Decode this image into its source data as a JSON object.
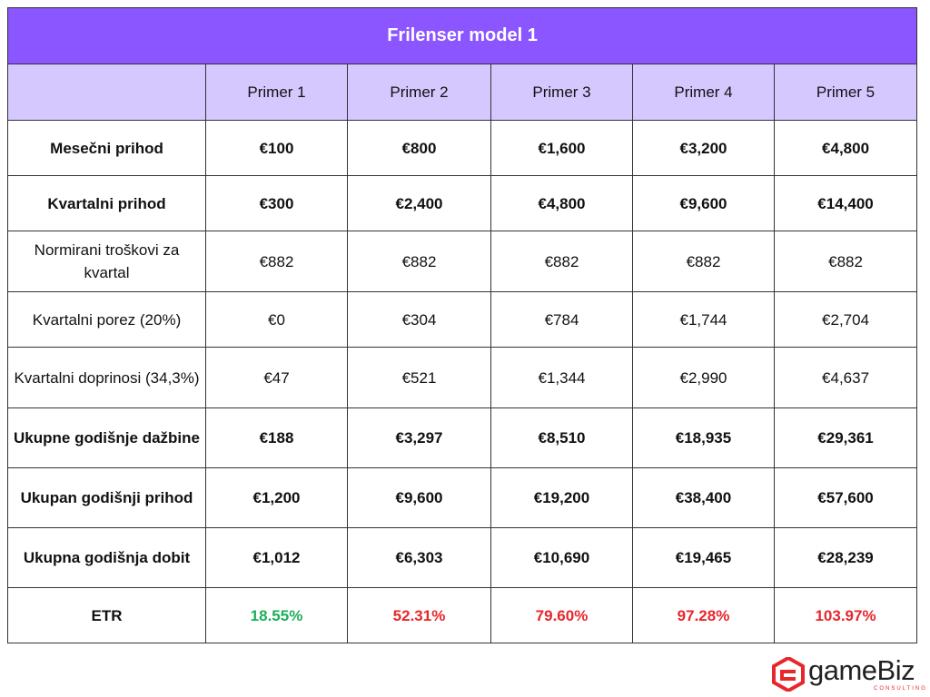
{
  "title": "Frilenser model 1",
  "columns": [
    "",
    "Primer 1",
    "Primer 2",
    "Primer 3",
    "Primer 4",
    "Primer 5"
  ],
  "rows": [
    {
      "label": "Mesečni prihod",
      "values": [
        "€100",
        "€800",
        "€1,600",
        "€3,200",
        "€4,800"
      ]
    },
    {
      "label": "Kvartalni prihod",
      "values": [
        "€300",
        "€2,400",
        "€4,800",
        "€9,600",
        "€14,400"
      ]
    },
    {
      "label": "Normirani troškovi za kvartal",
      "values": [
        "€882",
        "€882",
        "€882",
        "€882",
        "€882"
      ]
    },
    {
      "label": "Kvartalni porez (20%)",
      "values": [
        "€0",
        "€304",
        "€784",
        "€1,744",
        "€2,704"
      ]
    },
    {
      "label": "Kvartalni doprinosi (34,3%)",
      "values": [
        "€47",
        "€521",
        "€1,344",
        "€2,990",
        "€4,637"
      ]
    },
    {
      "label": "Ukupne godišnje dažbine",
      "values": [
        "€188",
        "€3,297",
        "€8,510",
        "€18,935",
        "€29,361"
      ]
    },
    {
      "label": "Ukupan godišnji prihod",
      "values": [
        "€1,200",
        "€9,600",
        "€19,200",
        "€38,400",
        "€57,600"
      ]
    },
    {
      "label": "Ukupna godišnja dobit",
      "values": [
        "€1,012",
        "€6,303",
        "€10,690",
        "€19,465",
        "€28,239"
      ]
    },
    {
      "label": "ETR",
      "values": [
        "18.55%",
        "52.31%",
        "79.60%",
        "97.28%",
        "103.97%"
      ]
    }
  ],
  "colors": {
    "title_bg": "#8B55FF",
    "header_bg": "#D5C8FF",
    "etr_good": "#1FAE5A",
    "etr_bad": "#E8262B",
    "logo_mark": "#E8262B"
  },
  "logo": {
    "name": "gameBiz",
    "sub": "CONSULTING",
    "icon": "gamebiz-logo-icon"
  }
}
